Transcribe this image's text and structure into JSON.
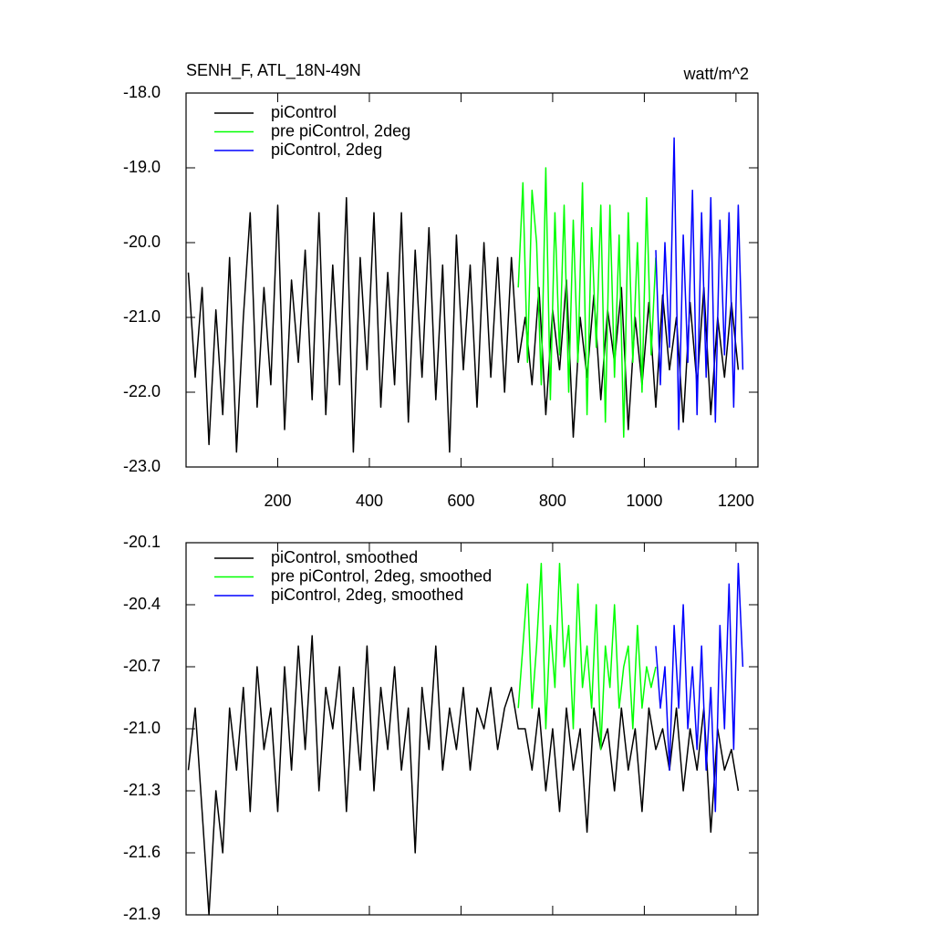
{
  "chart_data": [
    {
      "type": "line",
      "title": "SENH_F, ATL_18N-49N",
      "unit_label": "watt/m^2",
      "xlim": [
        0,
        1248
      ],
      "ylim": [
        -23,
        -18
      ],
      "xticks": [
        200,
        400,
        600,
        800,
        1000,
        1200
      ],
      "xtick_labels": true,
      "yticks": [
        {
          "value": -18,
          "label": "-18.0"
        },
        {
          "value": -19,
          "label": "-19.0"
        },
        {
          "value": -20,
          "label": "-20.0"
        },
        {
          "value": -21,
          "label": "-21.0"
        },
        {
          "value": -22,
          "label": "-22.0"
        },
        {
          "value": -23,
          "label": "-23.0"
        }
      ],
      "series": [
        {
          "name": "piControl",
          "color": "#000000",
          "x": [
            5,
            20,
            35,
            50,
            65,
            80,
            95,
            110,
            125,
            140,
            155,
            170,
            185,
            200,
            215,
            230,
            245,
            260,
            275,
            290,
            305,
            320,
            335,
            350,
            365,
            380,
            395,
            410,
            425,
            440,
            455,
            470,
            485,
            500,
            515,
            530,
            545,
            560,
            575,
            590,
            605,
            620,
            635,
            650,
            665,
            680,
            695,
            710,
            725,
            740,
            755,
            770,
            785,
            800,
            815,
            830,
            845,
            860,
            875,
            890,
            905,
            920,
            935,
            950,
            965,
            980,
            995,
            1010,
            1025,
            1040,
            1055,
            1070,
            1085,
            1100,
            1115,
            1130,
            1145,
            1160,
            1175,
            1190,
            1205
          ],
          "values": [
            -20.4,
            -21.8,
            -20.6,
            -22.7,
            -20.9,
            -22.3,
            -20.2,
            -22.8,
            -21.0,
            -19.6,
            -22.2,
            -20.6,
            -21.9,
            -19.5,
            -22.5,
            -20.5,
            -21.6,
            -20.1,
            -22.1,
            -19.6,
            -22.3,
            -20.3,
            -21.9,
            -19.4,
            -22.8,
            -20.2,
            -21.7,
            -19.6,
            -22.2,
            -20.4,
            -21.9,
            -19.6,
            -22.4,
            -20.1,
            -21.8,
            -19.8,
            -22.1,
            -20.3,
            -22.8,
            -19.9,
            -21.7,
            -20.3,
            -22.2,
            -20.0,
            -21.8,
            -20.2,
            -22.0,
            -20.2,
            -21.6,
            -21.0,
            -21.9,
            -20.6,
            -22.3,
            -20.9,
            -21.7,
            -20.5,
            -22.6,
            -21.0,
            -21.8,
            -20.7,
            -22.1,
            -20.9,
            -21.6,
            -20.6,
            -22.5,
            -21.0,
            -21.9,
            -20.8,
            -22.2,
            -20.7,
            -21.7,
            -21.0,
            -22.4,
            -20.8,
            -21.9,
            -20.6,
            -22.3,
            -21.0,
            -21.8,
            -20.8,
            -21.7
          ]
        },
        {
          "name": "pre piControl, 2deg",
          "color": "#00ff00",
          "x": [
            725,
            735,
            745,
            755,
            765,
            775,
            785,
            795,
            805,
            815,
            825,
            835,
            845,
            855,
            865,
            875,
            885,
            895,
            905,
            915,
            925,
            935,
            945,
            955,
            965,
            975,
            985,
            995,
            1005,
            1015,
            1025
          ],
          "values": [
            -20.6,
            -19.2,
            -21.6,
            -19.3,
            -20.0,
            -21.9,
            -19.0,
            -22.1,
            -19.6,
            -21.5,
            -19.5,
            -22.0,
            -19.7,
            -21.6,
            -19.2,
            -22.3,
            -19.8,
            -21.4,
            -19.5,
            -22.4,
            -19.5,
            -21.8,
            -19.9,
            -22.6,
            -19.6,
            -21.6,
            -20.0,
            -22.0,
            -19.4,
            -21.5,
            -20.2
          ]
        },
        {
          "name": "piControl, 2deg",
          "color": "#0000ff",
          "x": [
            1025,
            1035,
            1045,
            1055,
            1065,
            1075,
            1085,
            1095,
            1105,
            1115,
            1125,
            1135,
            1145,
            1155,
            1165,
            1175,
            1185,
            1195,
            1205,
            1215
          ],
          "values": [
            -20.1,
            -21.9,
            -20.0,
            -21.4,
            -18.6,
            -22.5,
            -19.9,
            -21.6,
            -19.3,
            -22.3,
            -19.6,
            -21.8,
            -19.4,
            -22.4,
            -19.7,
            -21.5,
            -19.6,
            -22.2,
            -19.5,
            -21.7
          ]
        }
      ]
    },
    {
      "type": "line",
      "xlim": [
        0,
        1248
      ],
      "ylim": [
        -21.9,
        -20.1
      ],
      "xticks": [
        200,
        400,
        600,
        800,
        1000,
        1200
      ],
      "xtick_labels": false,
      "yticks": [
        -20.1,
        -20.4,
        -20.7,
        {
          "value": -21,
          "label": "-21.0"
        },
        -21.3,
        -21.6,
        -21.9
      ],
      "series": [
        {
          "name": "piControl, smoothed",
          "color": "#000000",
          "x": [
            5,
            20,
            35,
            50,
            65,
            80,
            95,
            110,
            125,
            140,
            155,
            170,
            185,
            200,
            215,
            230,
            245,
            260,
            275,
            290,
            305,
            320,
            335,
            350,
            365,
            380,
            395,
            410,
            425,
            440,
            455,
            470,
            485,
            500,
            515,
            530,
            545,
            560,
            575,
            590,
            605,
            620,
            635,
            650,
            665,
            680,
            695,
            710,
            725,
            740,
            755,
            770,
            785,
            800,
            815,
            830,
            845,
            860,
            875,
            890,
            905,
            920,
            935,
            950,
            965,
            980,
            995,
            1010,
            1025,
            1040,
            1055,
            1070,
            1085,
            1100,
            1115,
            1130,
            1145,
            1160,
            1175,
            1190,
            1205
          ],
          "values": [
            -21.2,
            -20.9,
            -21.4,
            -21.9,
            -21.3,
            -21.6,
            -20.9,
            -21.2,
            -20.8,
            -21.4,
            -20.7,
            -21.1,
            -20.9,
            -21.4,
            -20.7,
            -21.2,
            -20.6,
            -21.1,
            -20.55,
            -21.3,
            -20.8,
            -21.0,
            -20.7,
            -21.4,
            -20.8,
            -21.2,
            -20.6,
            -21.3,
            -20.8,
            -21.1,
            -20.7,
            -21.2,
            -20.9,
            -21.6,
            -20.8,
            -21.1,
            -20.6,
            -21.2,
            -20.9,
            -21.1,
            -20.8,
            -21.2,
            -20.9,
            -21.0,
            -20.8,
            -21.1,
            -20.9,
            -20.8,
            -21.0,
            -21.0,
            -21.2,
            -20.9,
            -21.3,
            -21.0,
            -21.4,
            -20.9,
            -21.2,
            -21.0,
            -21.5,
            -20.9,
            -21.1,
            -21.0,
            -21.3,
            -20.9,
            -21.2,
            -21.0,
            -21.4,
            -20.9,
            -21.1,
            -21.0,
            -21.2,
            -20.9,
            -21.3,
            -21.0,
            -21.2,
            -20.9,
            -21.5,
            -21.0,
            -21.2,
            -21.1,
            -21.3
          ]
        },
        {
          "name": "pre piControl, 2deg, smoothed",
          "color": "#00ff00",
          "x": [
            725,
            735,
            745,
            755,
            765,
            775,
            785,
            795,
            805,
            815,
            825,
            835,
            845,
            855,
            865,
            875,
            885,
            895,
            905,
            915,
            925,
            935,
            945,
            955,
            965,
            975,
            985,
            995,
            1005,
            1015,
            1025
          ],
          "values": [
            -20.9,
            -20.6,
            -20.3,
            -20.9,
            -20.6,
            -20.2,
            -21.0,
            -20.5,
            -20.8,
            -20.2,
            -20.7,
            -20.5,
            -21.0,
            -20.3,
            -20.8,
            -20.6,
            -20.9,
            -20.4,
            -21.1,
            -20.6,
            -20.8,
            -20.4,
            -20.9,
            -20.7,
            -20.6,
            -21.0,
            -20.5,
            -20.9,
            -20.7,
            -20.8,
            -20.7
          ]
        },
        {
          "name": "piControl, 2deg, smoothed",
          "color": "#0000ff",
          "x": [
            1025,
            1035,
            1045,
            1055,
            1065,
            1075,
            1085,
            1095,
            1105,
            1115,
            1125,
            1135,
            1145,
            1155,
            1165,
            1175,
            1185,
            1195,
            1205,
            1215
          ],
          "values": [
            -20.6,
            -20.9,
            -20.7,
            -21.2,
            -20.5,
            -20.9,
            -20.4,
            -21.0,
            -20.7,
            -21.1,
            -20.6,
            -21.2,
            -20.8,
            -21.4,
            -20.5,
            -21.0,
            -20.3,
            -21.1,
            -20.2,
            -20.7
          ]
        }
      ]
    }
  ]
}
